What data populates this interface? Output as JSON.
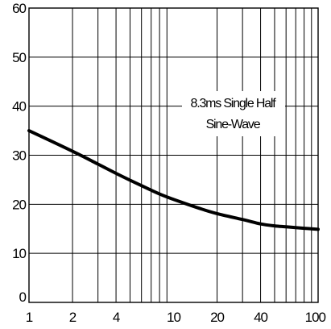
{
  "chart_data": {
    "type": "line",
    "title": "",
    "xlabel": "",
    "ylabel": "",
    "x_scale": "log",
    "xlim": [
      1,
      100
    ],
    "ylim": [
      0,
      60
    ],
    "grid": true,
    "x_ticks": [
      1,
      2,
      4,
      10,
      20,
      40,
      100
    ],
    "x_tick_labels": [
      "1",
      "2",
      "4",
      "10",
      "20",
      "40",
      "100"
    ],
    "y_ticks": [
      0,
      10,
      20,
      30,
      40,
      50,
      60
    ],
    "y_tick_labels": [
      "0",
      "10",
      "20",
      "30",
      "40",
      "50",
      "60"
    ],
    "annotation": [
      "8.3ms Single Half",
      "Sine-Wave"
    ],
    "series": [
      {
        "x": [
          1,
          2,
          3,
          4,
          6,
          8,
          10,
          15,
          20,
          30,
          40,
          50,
          60,
          80,
          100
        ],
        "y": [
          35,
          30.8,
          28.2,
          26.3,
          23.8,
          22.1,
          21,
          19.2,
          18.1,
          16.9,
          16,
          15.6,
          15.4,
          15.1,
          14.9
        ]
      }
    ],
    "colors": {
      "line": "#000000",
      "grid": "#000000",
      "background": "#ffffff"
    }
  }
}
